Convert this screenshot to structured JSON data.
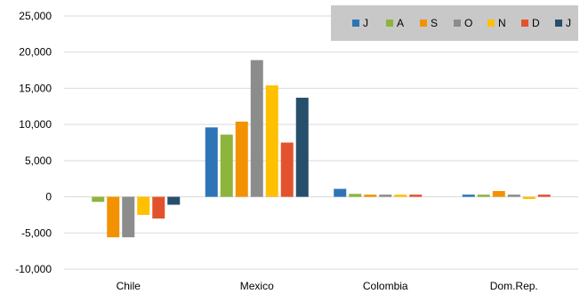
{
  "chart_data": {
    "type": "bar",
    "categories": [
      "Chile",
      "Mexico",
      "Colombia",
      "Dom.Rep."
    ],
    "series": [
      {
        "name": "J",
        "color": "#2e75b6",
        "values": [
          0,
          9600,
          1100,
          300
        ]
      },
      {
        "name": "A",
        "color": "#8db53c",
        "values": [
          -700,
          8600,
          400,
          300
        ]
      },
      {
        "name": "S",
        "color": "#f39200",
        "values": [
          -5600,
          10400,
          300,
          800
        ]
      },
      {
        "name": "O",
        "color": "#8c8c8c",
        "values": [
          -5600,
          18900,
          300,
          300
        ]
      },
      {
        "name": "N",
        "color": "#ffc000",
        "values": [
          -2500,
          15400,
          300,
          -300
        ]
      },
      {
        "name": "D",
        "color": "#e2532d",
        "values": [
          -3000,
          7500,
          300,
          300
        ]
      },
      {
        "name": "J",
        "color": "#264f6b",
        "values": [
          -1100,
          13700,
          0,
          0
        ]
      }
    ],
    "yticks": [
      "25,000",
      "20,000",
      "15,000",
      "10,000",
      "5,000",
      "0",
      "-5,000",
      "-10,000"
    ],
    "ylim": [
      -10000,
      25000
    ],
    "grid": true,
    "legend_position": "top-right"
  },
  "colors": {
    "grid": "#d9d9d9",
    "legend_bg": "#c8c8c8"
  }
}
